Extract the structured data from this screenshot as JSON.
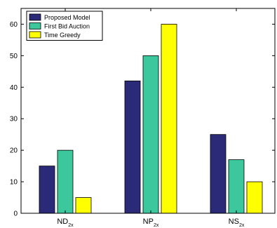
{
  "chart_data": {
    "type": "bar",
    "categories": [
      {
        "base": "ND",
        "sub": "2x"
      },
      {
        "base": "NP",
        "sub": "2x"
      },
      {
        "base": "NS",
        "sub": "2x"
      }
    ],
    "series": [
      {
        "name": "Proposed Model",
        "color": "#2a2a78",
        "values": [
          15,
          42,
          25
        ]
      },
      {
        "name": "First Bid Auction",
        "color": "#3cc79c",
        "values": [
          20,
          50,
          17
        ]
      },
      {
        "name": "Time Greedy",
        "color": "#ffff00",
        "values": [
          5,
          60,
          10
        ]
      }
    ],
    "ylim": [
      0,
      65
    ],
    "yticks": [
      0,
      10,
      20,
      30,
      40,
      50,
      60
    ],
    "legend_position": "top-left",
    "grid": false
  }
}
